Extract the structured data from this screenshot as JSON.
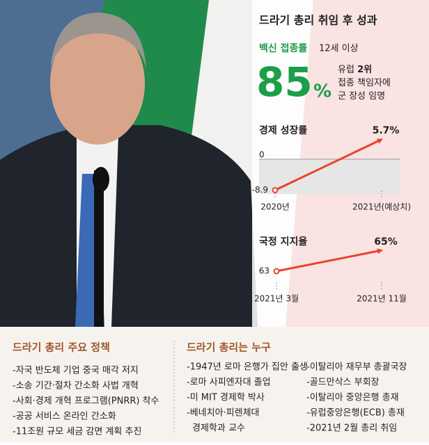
{
  "header": {
    "title": "드라기 총리 취임 후 성과"
  },
  "vaccine": {
    "label": "백신 접종률",
    "note": "12세 이상",
    "value": "85",
    "unit": "%",
    "lines": [
      {
        "text": "유럽 ",
        "bold": "2위"
      },
      {
        "text": "접종 책임자에"
      },
      {
        "text": "군 장성 임명"
      }
    ]
  },
  "chart_data": [
    {
      "type": "line",
      "title": "경제 성장률",
      "categories": [
        "2020년",
        "2021년(예상치)"
      ],
      "values": [
        -8.9,
        5.7
      ],
      "value_labels": [
        "-8.9",
        "5.7%"
      ],
      "ylim": [
        -10,
        8
      ],
      "yticks": [
        0
      ],
      "color": "#e8442a"
    },
    {
      "type": "line",
      "title": "국정 지지율",
      "categories": [
        "2021년 3월",
        "2021년 11월"
      ],
      "values": [
        63,
        65
      ],
      "value_labels": [
        "63",
        "65%"
      ],
      "ylim": [
        62,
        66
      ],
      "color": "#e8442a"
    }
  ],
  "policies": {
    "title": "드라기 총리 주요 정책",
    "items": [
      "-자국 반도체 기업 중국 매각 저지",
      "-소송 기간·절차 간소화 사법 개혁",
      "-사회·경제 개혁 프로그램(PNRR) 착수",
      "-공공 서비스 온라인 간소화",
      "-11조원 규모 세금 감면 계획 추진"
    ]
  },
  "profile": {
    "title": "드라기 총리는 누구",
    "left": [
      "-1947년 로마 은행가 집안 출생",
      "-로마 사피엔자대 졸업",
      "-미 MIT 경제학 박사",
      "-베네치아·피렌체대",
      "경제학과 교수"
    ],
    "right": [
      "-이탈리아 재무부 총괄국장",
      "-골드만삭스 부회장",
      "-이탈리아 중앙은행 총재",
      "-유럽중앙은행(ECB) 총재",
      "-2021년 2월 총리 취임"
    ]
  }
}
